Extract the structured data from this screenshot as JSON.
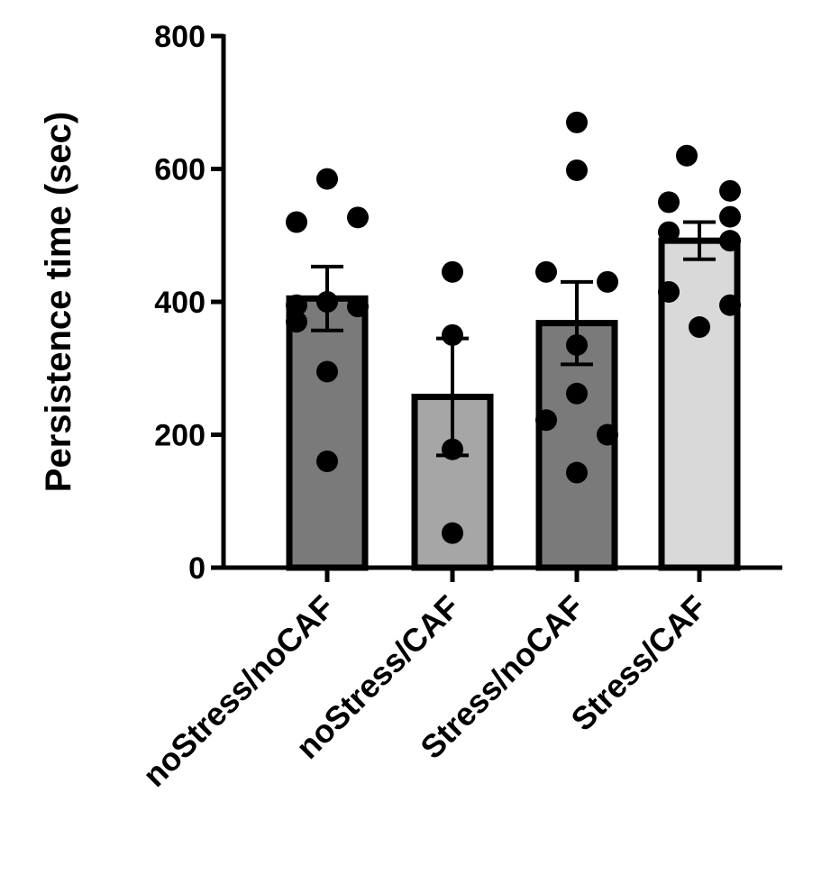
{
  "chart_data": {
    "type": "bar",
    "title": "",
    "xlabel": "",
    "ylabel": "Persistence time (sec)",
    "ylim": [
      0,
      800
    ],
    "yticks": [
      "0",
      "200",
      "400",
      "600",
      "800"
    ],
    "categories": [
      "noStress/noCAF",
      "noStress/CAF",
      "Stress/noCAF",
      "Stress/CAF"
    ],
    "values": [
      405,
      257,
      368,
      492
    ],
    "error": [
      48,
      88,
      62,
      28
    ],
    "bar_colors": [
      "#7a7a7a",
      "#a6a6a6",
      "#7a7a7a",
      "#d9d9d9"
    ],
    "points": [
      [
        585,
        520,
        527,
        400,
        395,
        393,
        370,
        295,
        160
      ],
      [
        445,
        350,
        178,
        52
      ],
      [
        670,
        598,
        445,
        430,
        335,
        262,
        222,
        200,
        143
      ],
      [
        620,
        550,
        567,
        528,
        505,
        492,
        415,
        395,
        362
      ]
    ],
    "grid": false,
    "legend": "none"
  }
}
